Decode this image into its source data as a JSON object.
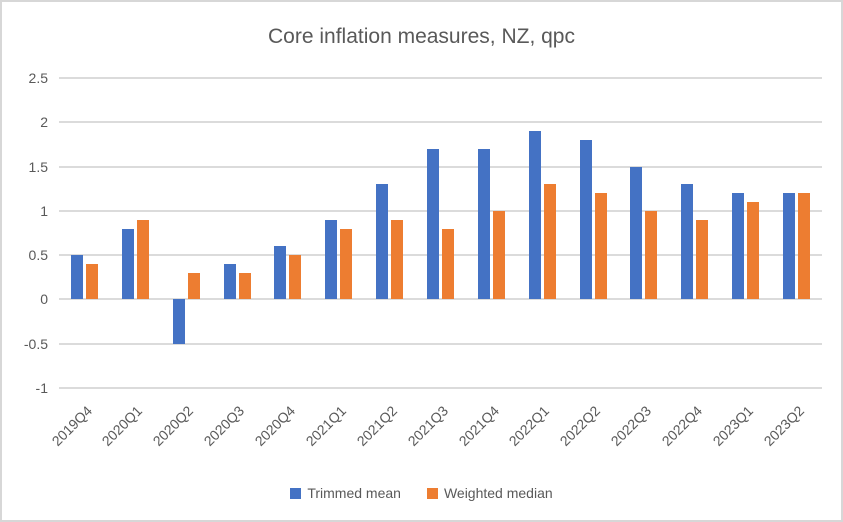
{
  "chart_data": {
    "type": "bar",
    "title": "Core inflation measures, NZ, qpc",
    "categories": [
      "2019Q4",
      "2020Q1",
      "2020Q2",
      "2020Q3",
      "2020Q4",
      "2021Q1",
      "2021Q2",
      "2021Q3",
      "2021Q4",
      "2022Q1",
      "2022Q2",
      "2022Q3",
      "2022Q4",
      "2023Q1",
      "2023Q2"
    ],
    "series": [
      {
        "name": "Trimmed mean",
        "color": "#4472C4",
        "values": [
          0.5,
          0.8,
          -0.5,
          0.4,
          0.6,
          0.9,
          1.3,
          1.7,
          1.7,
          1.9,
          1.8,
          1.5,
          1.3,
          1.2,
          1.2
        ]
      },
      {
        "name": "Weighted median",
        "color": "#ED7D31",
        "values": [
          0.4,
          0.9,
          0.3,
          0.3,
          0.5,
          0.8,
          0.9,
          0.8,
          1.0,
          1.3,
          1.2,
          1.0,
          0.9,
          1.1,
          1.2
        ]
      }
    ],
    "ylim": [
      -1,
      2.5
    ],
    "y_ticks": [
      2.5,
      2,
      1.5,
      1,
      0.5,
      0,
      -0.5,
      -1
    ],
    "y_tick_labels": [
      "2.5",
      "2",
      "1.5",
      "1",
      "0.5",
      "0",
      "-0.5",
      "-1"
    ],
    "grid": true,
    "legend_position": "bottom",
    "colors": {
      "title_text": "#595959",
      "axis_text": "#595959",
      "gridline": "#dbdbdb",
      "background": "#ffffff",
      "border": "#d7d7d7"
    }
  }
}
